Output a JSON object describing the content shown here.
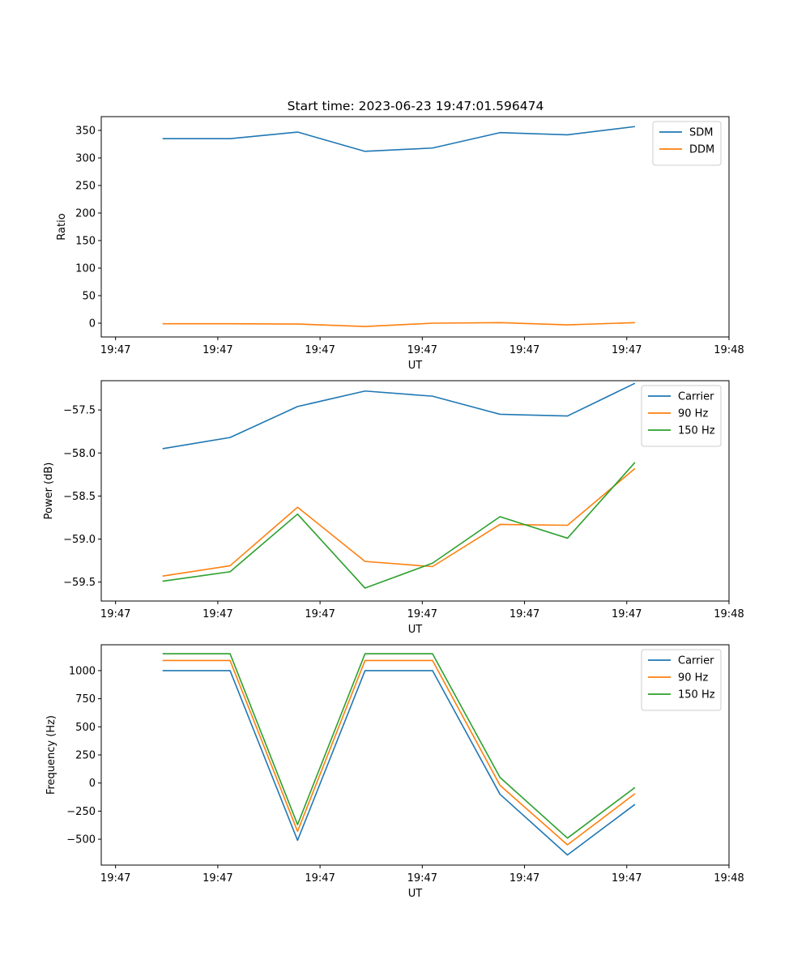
{
  "figure": {
    "title": "Start time: 2023-06-23 19:47:01.596474"
  },
  "chart_data": [
    {
      "type": "line",
      "title": "Start time: 2023-06-23 19:47:01.596474",
      "xlabel": "UT",
      "ylabel": "Ratio",
      "x_tick_labels": [
        "19:47",
        "19:47",
        "19:47",
        "19:47",
        "19:47",
        "19:47",
        "19:48"
      ],
      "x_tick_positions": [
        0,
        1,
        2,
        3,
        4,
        5,
        6
      ],
      "xlim": [
        -0.14,
        6.0
      ],
      "x": [
        0.46,
        1.12,
        1.78,
        2.44,
        3.1,
        3.76,
        4.42,
        5.08
      ],
      "ylim": [
        -25,
        375
      ],
      "y_ticks": [
        0,
        50,
        100,
        150,
        200,
        250,
        300,
        350
      ],
      "y_tick_labels": [
        "0",
        "50",
        "100",
        "150",
        "200",
        "250",
        "300",
        "350"
      ],
      "grid": false,
      "legend": "upper-right",
      "series": [
        {
          "name": "SDM",
          "color": "#1f77b4",
          "values": [
            335,
            335,
            347,
            312,
            318,
            346,
            342,
            357
          ]
        },
        {
          "name": "DDM",
          "color": "#ff7f0e",
          "values": [
            -1,
            -1,
            -1.5,
            -6,
            0,
            1,
            -3,
            1
          ]
        }
      ]
    },
    {
      "type": "line",
      "title": "",
      "xlabel": "UT",
      "ylabel": "Power (dB)",
      "x_tick_labels": [
        "19:47",
        "19:47",
        "19:47",
        "19:47",
        "19:47",
        "19:47",
        "19:48"
      ],
      "x_tick_positions": [
        0,
        1,
        2,
        3,
        4,
        5,
        6
      ],
      "xlim": [
        -0.14,
        6.0
      ],
      "x": [
        0.46,
        1.12,
        1.78,
        2.44,
        3.1,
        3.76,
        4.42,
        5.08
      ],
      "ylim": [
        -59.72,
        -57.16
      ],
      "y_ticks": [
        -59.5,
        -59.0,
        -58.5,
        -58.0,
        -57.5
      ],
      "y_tick_labels": [
        "−59.5",
        "−59.0",
        "−58.5",
        "−58.0",
        "−57.5"
      ],
      "grid": false,
      "legend": "upper-right",
      "series": [
        {
          "name": "Carrier",
          "color": "#1f77b4",
          "values": [
            -57.95,
            -57.82,
            -57.46,
            -57.28,
            -57.34,
            -57.55,
            -57.57,
            -57.19
          ]
        },
        {
          "name": "90 Hz",
          "color": "#ff7f0e",
          "values": [
            -59.43,
            -59.31,
            -58.63,
            -59.26,
            -59.32,
            -58.83,
            -58.84,
            -58.18
          ]
        },
        {
          "name": "150 Hz",
          "color": "#2ca02c",
          "values": [
            -59.49,
            -59.38,
            -58.71,
            -59.57,
            -59.28,
            -58.74,
            -58.99,
            -58.11
          ]
        }
      ]
    },
    {
      "type": "line",
      "title": "",
      "xlabel": "UT",
      "ylabel": "Frequency (Hz)",
      "x_tick_labels": [
        "19:47",
        "19:47",
        "19:47",
        "19:47",
        "19:47",
        "19:47",
        "19:48"
      ],
      "x_tick_positions": [
        0,
        1,
        2,
        3,
        4,
        5,
        6
      ],
      "xlim": [
        -0.14,
        6.0
      ],
      "x": [
        0.46,
        1.12,
        1.78,
        2.44,
        3.1,
        3.76,
        4.42,
        5.08
      ],
      "ylim": [
        -730,
        1230
      ],
      "y_ticks": [
        -500,
        -250,
        0,
        250,
        500,
        750,
        1000
      ],
      "y_tick_labels": [
        "−500",
        "−250",
        "0",
        "250",
        "500",
        "750",
        "1000"
      ],
      "grid": false,
      "legend": "upper-right",
      "series": [
        {
          "name": "Carrier",
          "color": "#1f77b4",
          "values": [
            1000,
            1000,
            -510,
            1000,
            1000,
            -100,
            -640,
            -190
          ]
        },
        {
          "name": "90 Hz",
          "color": "#ff7f0e",
          "values": [
            1090,
            1090,
            -430,
            1090,
            1090,
            -20,
            -550,
            -95
          ]
        },
        {
          "name": "150 Hz",
          "color": "#2ca02c",
          "values": [
            1150,
            1150,
            -370,
            1150,
            1150,
            50,
            -490,
            -40
          ]
        }
      ]
    }
  ]
}
